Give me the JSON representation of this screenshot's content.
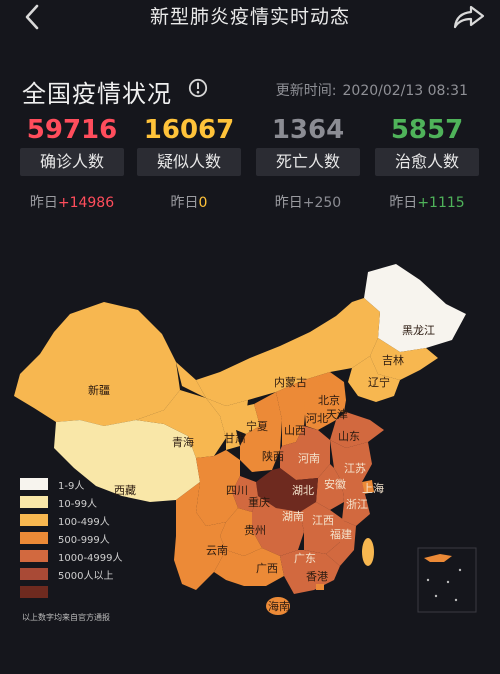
{
  "nav": {
    "title": "新型肺炎疫情实时动态",
    "back_icon": "back-arrow-icon",
    "share_icon": "share-icon"
  },
  "header": {
    "title": "全国疫情状况",
    "info_icon": "info-icon",
    "updated_label": "更新时间:",
    "updated_value": "2020/02/13 08:31"
  },
  "stats": [
    {
      "value": "59716",
      "label": "确诊人数",
      "delta_prefix": "昨日",
      "delta": "+14986",
      "color": "#ff4d5c"
    },
    {
      "value": "16067",
      "label": "疑似人数",
      "delta_prefix": "昨日",
      "delta": "0",
      "color": "#ffc33a"
    },
    {
      "value": "1364",
      "label": "死亡人数",
      "delta_prefix": "昨日",
      "delta": "+250",
      "color": "#8b8c93"
    },
    {
      "value": "5857",
      "label": "治愈人数",
      "delta_prefix": "昨日",
      "delta": "+1115",
      "color": "#4fb35a"
    }
  ],
  "map": {
    "provinces": [
      "黑龙江",
      "吉林",
      "辽宁",
      "内蒙古",
      "北京",
      "天津",
      "河北",
      "新疆",
      "青海",
      "甘肃",
      "宁夏",
      "山西",
      "山东",
      "陕西",
      "河南",
      "西藏",
      "四川",
      "重庆",
      "湖北",
      "安徽",
      "江苏",
      "浙江",
      "上海",
      "湖南",
      "江西",
      "福建",
      "贵州",
      "云南",
      "广西",
      "广东",
      "香港",
      "海南"
    ],
    "legend": [
      {
        "label": "1-9人",
        "color": "#f7f4ee"
      },
      {
        "label": "10-99人",
        "color": "#f9e7a8"
      },
      {
        "label": "100-499人",
        "color": "#f7b750"
      },
      {
        "label": "500-999人",
        "color": "#ec8a37"
      },
      {
        "label": "1000-4999人",
        "color": "#d2693f"
      },
      {
        "label": "5000人以上",
        "color": "#a94a36"
      },
      {
        "label": "",
        "color": "#6e2a1f"
      }
    ],
    "note": "以上数字均来自官方通报"
  }
}
